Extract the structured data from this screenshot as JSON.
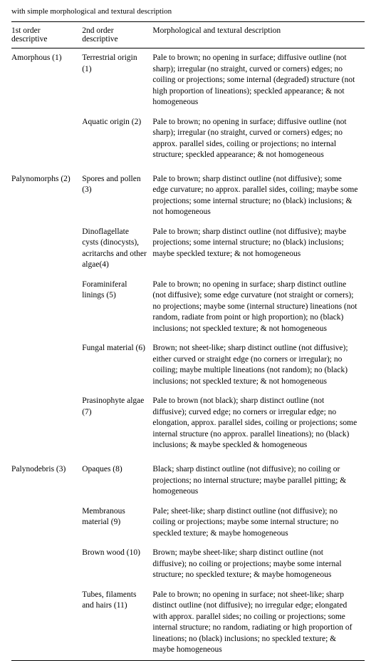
{
  "caption": "with simple morphological and textural description",
  "headers": {
    "c1": "1st order descriptive",
    "c2": "2nd order descriptive",
    "c3": "Morphological and textural description"
  },
  "groups": [
    {
      "first": "Amorphous (1)",
      "rows": [
        {
          "second": "Terrestrial origin (1)",
          "desc": "Pale to brown; no opening in surface; diffusive outline (not sharp); irregular (no straight, curved or corners) edges; no coiling or projections; some internal (degraded) structure (not high proportion of lineations); speckled appearance; & not homogeneous"
        },
        {
          "second": "Aquatic origin (2)",
          "desc": "Pale to brown; no opening in surface; diffusive outline (not sharp); irregular (no straight, curved or corners) edges; no approx. parallel sides, coiling or projections; no internal structure; speckled appearance; & not homogeneous"
        }
      ]
    },
    {
      "first": "Palynomorphs (2)",
      "rows": [
        {
          "second": "Spores and pollen (3)",
          "desc": "Pale to brown; sharp distinct outline (not diffusive); some edge curvature; no approx. parallel sides, coiling; maybe some projections; some internal structure; no (black) inclusions; & not homogeneous"
        },
        {
          "second": "Dinoflagellate cysts (dinocysts), acritarchs and other algae(4)",
          "desc": "Pale to brown; sharp distinct outline (not diffusive); maybe projections; some internal structure; no (black) inclusions; maybe speckled texture; & not homogeneous"
        },
        {
          "second": "Foraminiferal linings (5)",
          "desc": "Pale to brown; no opening in surface; sharp distinct outline (not diffusive); some edge curvature (not straight or corners); no projections; maybe some (internal structure) lineations (not random, radiate from point or high proportion); no (black) inclusions; not speckled texture; & not homogeneous"
        },
        {
          "second": "Fungal material (6)",
          "desc": "Brown; not sheet-like; sharp distinct outline (not diffusive); either curved or straight edge (no corners or irregular); no coiling; maybe multiple lineations (not random); no (black) inclusions; not speckled texture; & not homogeneous"
        },
        {
          "second": "Prasinophyte algae (7)",
          "desc": "Pale to brown (not black); sharp distinct outline (not diffusive); curved edge; no corners or irregular edge; no elongation, approx. parallel sides, coiling or projections; some internal structure (no approx. parallel lineations); no (black) inclusions; & maybe speckled & homogeneous"
        }
      ]
    },
    {
      "first": "Palynodebris (3)",
      "rows": [
        {
          "second": "Opaques (8)",
          "desc": "Black; sharp distinct outline (not diffusive); no coiling or projections; no internal structure; maybe parallel pitting; & homogeneous"
        },
        {
          "second": "Membranous material (9)",
          "desc": "Pale; sheet-like; sharp distinct outline (not diffusive); no coiling or projections; maybe some internal structure; no speckled texture; & maybe homogeneous"
        },
        {
          "second": "Brown wood (10)",
          "desc": "Brown; maybe sheet-like; sharp distinct outline (not diffusive); no coiling or projections; maybe some internal structure; no speckled texture; & maybe homogeneous"
        },
        {
          "second": "Tubes, filaments and hairs (11)",
          "desc": "Pale to brown; no opening in surface; not sheet-like; sharp distinct outline (not diffusive); no irregular edge; elongated with approx. parallel sides; no coiling or projections; some internal structure; no random, radiating or high proportion of lineations; no (black) inclusions; no speckled texture; & maybe homogeneous"
        }
      ]
    }
  ]
}
